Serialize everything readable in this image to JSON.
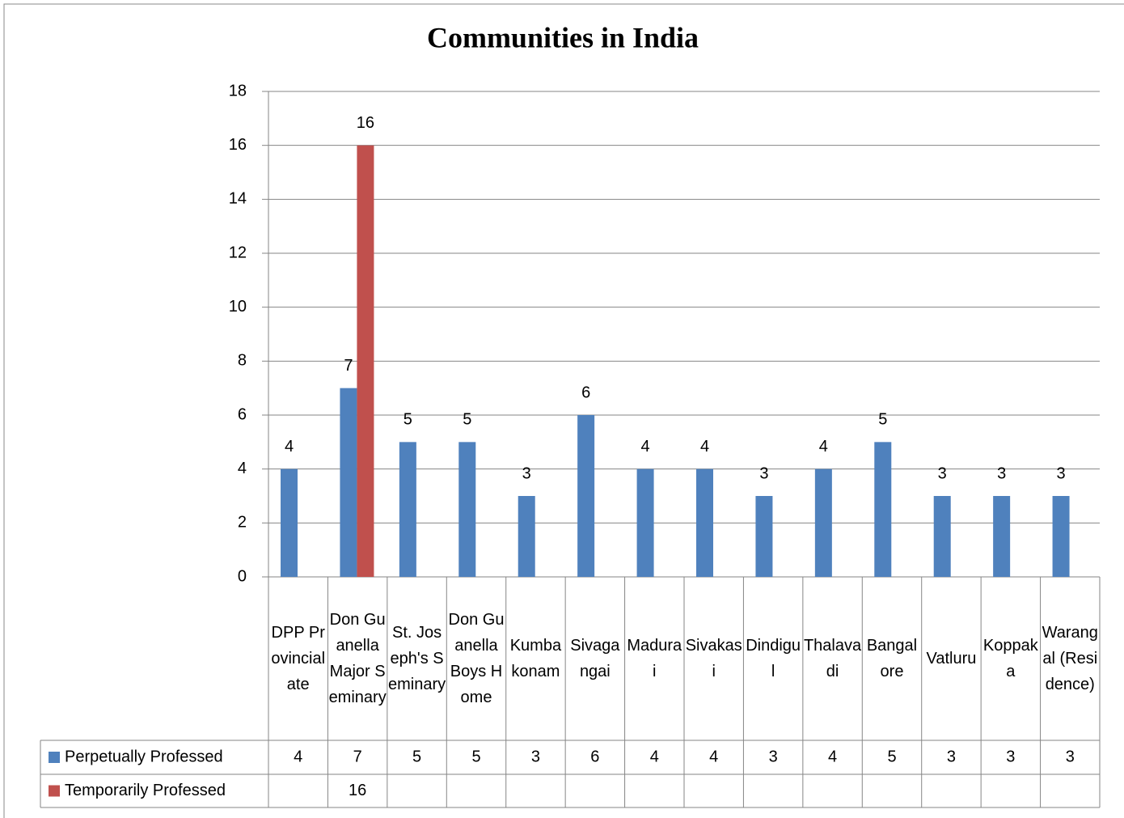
{
  "chart_data": {
    "type": "bar",
    "title": "Communities in India",
    "categories": [
      "DPP Provincialate",
      "Don Guanella Major Seminary",
      "St. Joseph's Seminary",
      "Don Guanella Boys Home",
      "Kumbakonam",
      "Sivagangai",
      "Madurai",
      "Sivakasi",
      "Dindigul",
      "Thalavadi",
      "Bangalore",
      "Vatluru",
      "Koppaka",
      "Warangal (Residence)"
    ],
    "series": [
      {
        "name": "Perpetually Professed",
        "color": "#4f81bd",
        "values": [
          4,
          7,
          5,
          5,
          3,
          6,
          4,
          4,
          3,
          4,
          5,
          3,
          3,
          3
        ]
      },
      {
        "name": "Temporarily Professed",
        "color": "#c0504d",
        "values": [
          null,
          16,
          null,
          null,
          null,
          null,
          null,
          null,
          null,
          null,
          null,
          null,
          null,
          null
        ]
      }
    ],
    "ylim": [
      0,
      18
    ],
    "yticks": [
      0,
      2,
      4,
      6,
      8,
      10,
      12,
      14,
      16,
      18
    ],
    "grid": true,
    "legend": "data-table"
  }
}
